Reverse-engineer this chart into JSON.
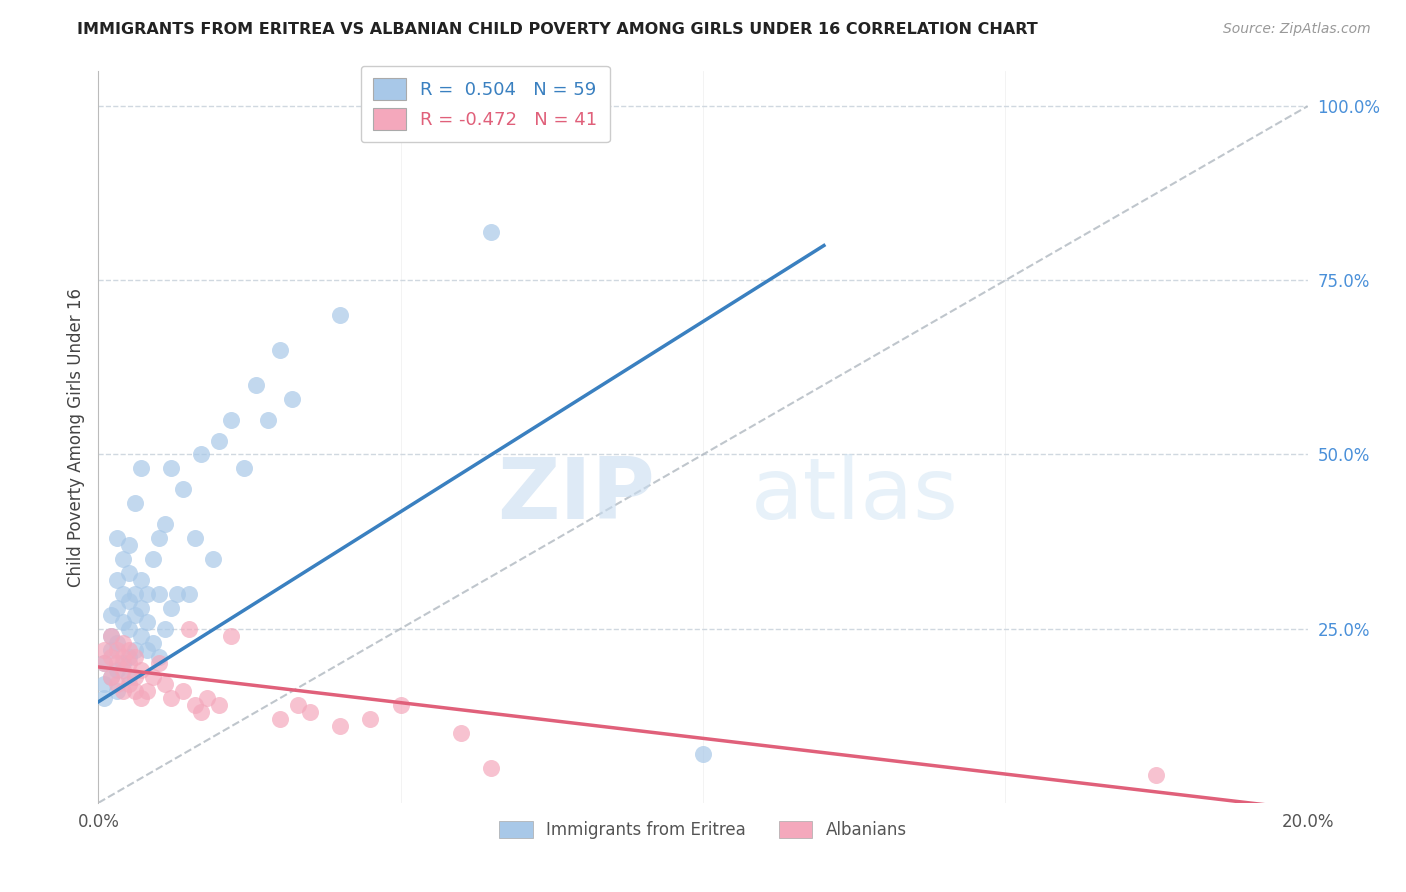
{
  "title": "IMMIGRANTS FROM ERITREA VS ALBANIAN CHILD POVERTY AMONG GIRLS UNDER 16 CORRELATION CHART",
  "source": "Source: ZipAtlas.com",
  "ylabel": "Child Poverty Among Girls Under 16",
  "xlim": [
    0.0,
    0.2
  ],
  "ylim": [
    0.0,
    1.05
  ],
  "legend_labels": [
    "Immigrants from Eritrea",
    "Albanians"
  ],
  "legend_r_blue": "R =  0.504",
  "legend_n_blue": "N = 59",
  "legend_r_pink": "R = -0.472",
  "legend_n_pink": "N = 41",
  "blue_color": "#A8C8E8",
  "pink_color": "#F4A8BC",
  "blue_line_color": "#3A80C0",
  "pink_line_color": "#E0607A",
  "dashed_line_color": "#B0B8C0",
  "watermark_zip": "ZIP",
  "watermark_atlas": "atlas",
  "grid_color": "#D0D8E0",
  "background_color": "#FFFFFF",
  "blue_scatter_x": [
    0.001,
    0.001,
    0.001,
    0.002,
    0.002,
    0.002,
    0.002,
    0.003,
    0.003,
    0.003,
    0.003,
    0.003,
    0.003,
    0.004,
    0.004,
    0.004,
    0.004,
    0.005,
    0.005,
    0.005,
    0.005,
    0.005,
    0.005,
    0.006,
    0.006,
    0.006,
    0.006,
    0.007,
    0.007,
    0.007,
    0.007,
    0.008,
    0.008,
    0.008,
    0.009,
    0.009,
    0.01,
    0.01,
    0.01,
    0.011,
    0.011,
    0.012,
    0.012,
    0.013,
    0.014,
    0.015,
    0.016,
    0.017,
    0.019,
    0.02,
    0.022,
    0.024,
    0.026,
    0.028,
    0.03,
    0.032,
    0.04,
    0.065,
    0.1
  ],
  "blue_scatter_y": [
    0.15,
    0.17,
    0.2,
    0.18,
    0.22,
    0.24,
    0.27,
    0.16,
    0.19,
    0.23,
    0.28,
    0.32,
    0.38,
    0.2,
    0.26,
    0.3,
    0.35,
    0.18,
    0.21,
    0.25,
    0.29,
    0.33,
    0.37,
    0.22,
    0.27,
    0.3,
    0.43,
    0.24,
    0.28,
    0.32,
    0.48,
    0.22,
    0.26,
    0.3,
    0.23,
    0.35,
    0.21,
    0.3,
    0.38,
    0.25,
    0.4,
    0.28,
    0.48,
    0.3,
    0.45,
    0.3,
    0.38,
    0.5,
    0.35,
    0.52,
    0.55,
    0.48,
    0.6,
    0.55,
    0.65,
    0.58,
    0.7,
    0.82,
    0.07
  ],
  "pink_scatter_x": [
    0.001,
    0.001,
    0.002,
    0.002,
    0.002,
    0.003,
    0.003,
    0.003,
    0.004,
    0.004,
    0.004,
    0.004,
    0.005,
    0.005,
    0.005,
    0.006,
    0.006,
    0.006,
    0.007,
    0.007,
    0.008,
    0.009,
    0.01,
    0.011,
    0.012,
    0.014,
    0.015,
    0.016,
    0.017,
    0.018,
    0.02,
    0.022,
    0.03,
    0.033,
    0.035,
    0.04,
    0.045,
    0.05,
    0.06,
    0.065,
    0.175
  ],
  "pink_scatter_y": [
    0.2,
    0.22,
    0.18,
    0.21,
    0.24,
    0.17,
    0.2,
    0.22,
    0.16,
    0.19,
    0.21,
    0.23,
    0.17,
    0.2,
    0.22,
    0.16,
    0.18,
    0.21,
    0.15,
    0.19,
    0.16,
    0.18,
    0.2,
    0.17,
    0.15,
    0.16,
    0.25,
    0.14,
    0.13,
    0.15,
    0.14,
    0.24,
    0.12,
    0.14,
    0.13,
    0.11,
    0.12,
    0.14,
    0.1,
    0.05,
    0.04
  ],
  "blue_line_x0": 0.0,
  "blue_line_y0": 0.145,
  "blue_line_x1": 0.12,
  "blue_line_y1": 0.8,
  "pink_line_x0": 0.0,
  "pink_line_y0": 0.195,
  "pink_line_x1": 0.2,
  "pink_line_y1": -0.01
}
